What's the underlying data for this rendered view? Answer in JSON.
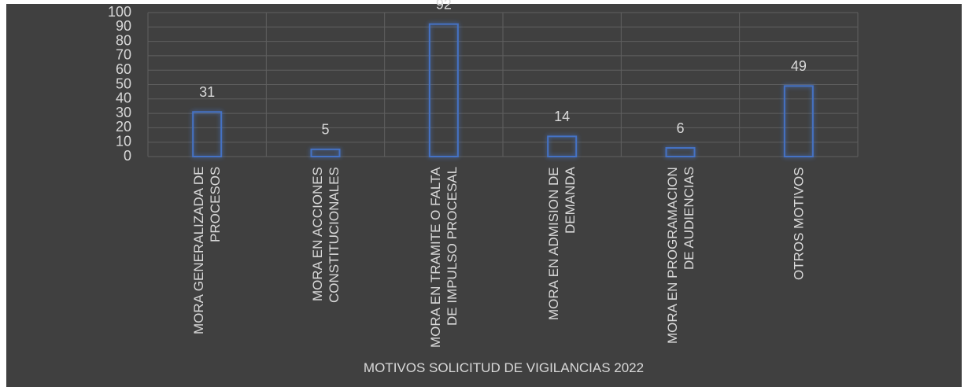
{
  "chart_data": {
    "type": "bar",
    "x_label": "MOTIVOS SOLICITUD DE VIGILANCIAS 2022",
    "categories": [
      "MORA GENERALIZADA DE PROCESOS",
      "MORA EN ACCIONES CONSTITUCIONALES",
      "MORA EN TRAMITE O FALTA DE IMPULSO PROCESAL",
      "MORA EN ADMISION DE DEMANDA",
      "MORA EN PROGRAMACION DE AUDIENCIAS",
      "OTROS MOTIVOS"
    ],
    "values": [
      31,
      5,
      92,
      14,
      6,
      49
    ],
    "color": "#4472c4",
    "ylim": [
      0,
      100
    ],
    "yticks": [
      0,
      10,
      20,
      30,
      40,
      50,
      60,
      70,
      80,
      90,
      100
    ],
    "grid": true
  }
}
